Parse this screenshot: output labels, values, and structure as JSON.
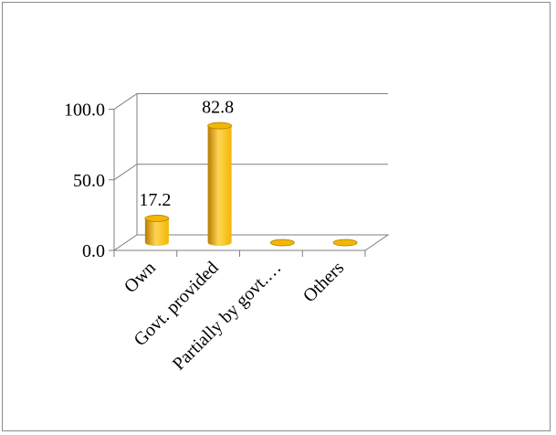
{
  "chart_data": {
    "type": "bar",
    "style": "3d-cylinder",
    "categories": [
      "Own",
      "Govt. provided",
      "Partially by govt.…",
      "Others"
    ],
    "values": [
      17.2,
      82.8,
      0.0,
      0.0
    ],
    "data_labels": [
      "17.2",
      "82.8",
      "",
      ""
    ],
    "y_ticks": [
      0.0,
      50.0,
      100.0
    ],
    "y_tick_labels": [
      "0.0",
      "50.0",
      "100.0"
    ],
    "ylim": [
      0,
      100
    ],
    "grid": true,
    "legend": "none",
    "bar_color": "#f2b705",
    "bar_shadow_color": "#b77d00",
    "bar_highlight_color": "#ffd454"
  }
}
